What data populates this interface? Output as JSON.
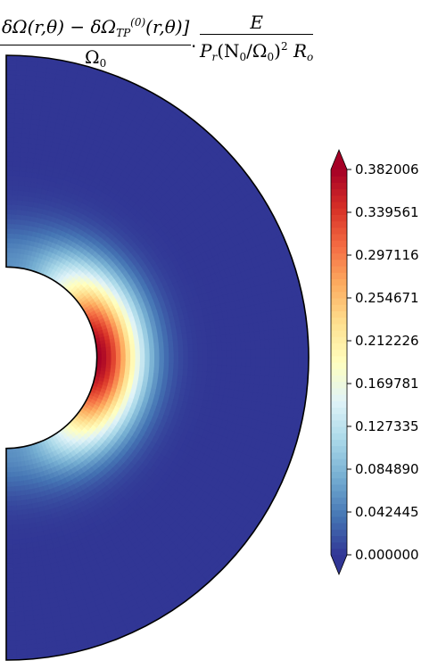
{
  "chart_data": {
    "type": "heatmap",
    "title": {
      "num_main": "δΩ(r,θ) − δΩ",
      "num_sub": "TP",
      "num_sup": "(0)",
      "num_tail": "(r,θ)]",
      "den_main": "Ω",
      "den_sub": "0",
      "dot": "·",
      "num2": "E",
      "den2_a": "P",
      "den2_a_sub": "r",
      "den2_b": "(N",
      "den2_b_sub": "0",
      "den2_c": "/Ω",
      "den2_c_sub": "0",
      "den2_d": ")",
      "den2_d_sup": "2",
      "den2_e": " R",
      "den2_e_sub": "o"
    },
    "domain": {
      "shape": "half-annulus",
      "inner_radius_fraction": 0.3,
      "theta_range_deg": [
        0,
        180
      ]
    },
    "value_range": [
      0.0,
      0.382006
    ],
    "colormap": "RdYlBu_r",
    "colorbar": {
      "extend": "both",
      "ticks": [
        "0.382006",
        "0.339561",
        "0.297116",
        "0.254671",
        "0.212226",
        "0.169781",
        "0.127335",
        "0.084890",
        "0.042445",
        "0.000000"
      ],
      "tick_values": [
        0.382006,
        0.339561,
        0.297116,
        0.254671,
        0.212226,
        0.169781,
        0.127335,
        0.08489,
        0.042445,
        0.0
      ]
    },
    "field": {
      "peak_value": 0.382006,
      "peak_location": "inner boundary near equator",
      "decay": "decreases outward and toward poles; near 0 at outer boundary"
    }
  }
}
